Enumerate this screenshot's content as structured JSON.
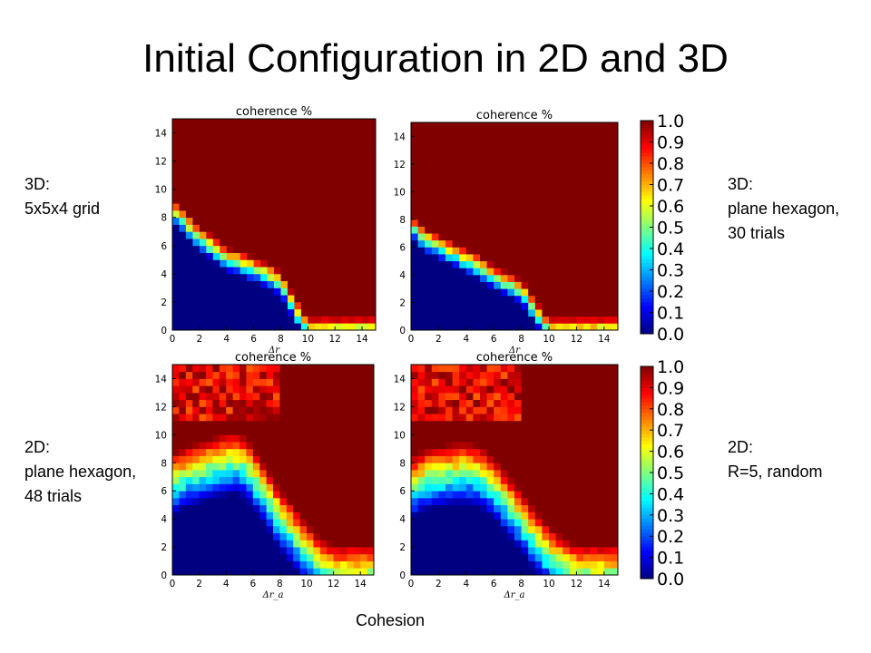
{
  "title": "Initial Configuration in 2D and 3D",
  "labels": {
    "top_left": "3D:\n5x5x4 grid",
    "top_right": "3D:\nplane hexagon,\n30 trials",
    "bottom_left": "2D:\nplane hexagon,\n48 trials",
    "bottom_right": "2D:\nR=5, random"
  },
  "caption": "Cohesion",
  "colorbar": {
    "min": 0.0,
    "max": 1.0,
    "ticks": [
      "0.0",
      "0.1",
      "0.2",
      "0.3",
      "0.4",
      "0.5",
      "0.6",
      "0.7",
      "0.8",
      "0.9",
      "1.0"
    ],
    "colormap": "jet"
  },
  "chart_data": [
    {
      "type": "heatmap",
      "title": "coherence %",
      "xlabel": "Δr",
      "ylabel": "",
      "xlim": [
        0,
        15
      ],
      "ylim": [
        0,
        15
      ],
      "xticks": [
        "0",
        "2",
        "4",
        "6",
        "8",
        "10",
        "12",
        "14"
      ],
      "yticks": [
        "0",
        "2",
        "4",
        "6",
        "8",
        "10",
        "12",
        "14"
      ],
      "boundary": [
        [
          0,
          8.5
        ],
        [
          1,
          7.5
        ],
        [
          2,
          6.5
        ],
        [
          3,
          5.8
        ],
        [
          4,
          5.0
        ],
        [
          5,
          4.7
        ],
        [
          6,
          4.3
        ],
        [
          7,
          3.9
        ],
        [
          8,
          3.3
        ],
        [
          9,
          1.5
        ],
        [
          10,
          0
        ]
      ],
      "width": 0.9
    },
    {
      "type": "heatmap",
      "title": "coherence %",
      "xlabel": "Δr",
      "ylabel": "",
      "xlim": [
        0,
        15
      ],
      "ylim": [
        0,
        15
      ],
      "xticks": [
        "0",
        "2",
        "4",
        "6",
        "8",
        "10",
        "12",
        "14"
      ],
      "yticks": [
        "0",
        "2",
        "4",
        "6",
        "8",
        "10",
        "12",
        "14"
      ],
      "boundary": [
        [
          0,
          7.5
        ],
        [
          1,
          6.5
        ],
        [
          2,
          6.0
        ],
        [
          3,
          5.5
        ],
        [
          4,
          5.0
        ],
        [
          5,
          4.5
        ],
        [
          6,
          3.8
        ],
        [
          7,
          3.3
        ],
        [
          8,
          2.8
        ],
        [
          9,
          1.3
        ],
        [
          10,
          0
        ]
      ],
      "width": 0.9
    },
    {
      "type": "heatmap",
      "title": "coherence %",
      "xlabel": "Δr_a",
      "ylabel": "",
      "xlim": [
        0,
        15
      ],
      "ylim": [
        0,
        15
      ],
      "xticks": [
        "0",
        "2",
        "4",
        "6",
        "8",
        "10",
        "12",
        "14"
      ],
      "yticks": [
        "0",
        "2",
        "4",
        "6",
        "8",
        "10",
        "12",
        "14"
      ],
      "boundary": [
        [
          0,
          6.5
        ],
        [
          1,
          7.0
        ],
        [
          2,
          7.3
        ],
        [
          3,
          7.6
        ],
        [
          4,
          7.9
        ],
        [
          5,
          8.0
        ],
        [
          6,
          7.0
        ],
        [
          7,
          5.5
        ],
        [
          8,
          4.0
        ],
        [
          9,
          2.8
        ],
        [
          10,
          1.5
        ],
        [
          11,
          0.5
        ],
        [
          12,
          0
        ]
      ],
      "width": 2.2,
      "top_noise": 0.1
    },
    {
      "type": "heatmap",
      "title": "coherence %",
      "xlabel": "Δr_a",
      "ylabel": "",
      "xlim": [
        0,
        15
      ],
      "ylim": [
        0,
        15
      ],
      "xticks": [
        "0",
        "2",
        "4",
        "6",
        "8",
        "10",
        "12",
        "14"
      ],
      "yticks": [
        "0",
        "2",
        "4",
        "6",
        "8",
        "10",
        "12",
        "14"
      ],
      "boundary": [
        [
          0,
          6.2
        ],
        [
          1,
          6.8
        ],
        [
          2,
          7.0
        ],
        [
          3,
          7.2
        ],
        [
          4,
          7.3
        ],
        [
          5,
          7.0
        ],
        [
          6,
          6.2
        ],
        [
          7,
          5.0
        ],
        [
          8,
          3.8
        ],
        [
          9,
          2.5
        ],
        [
          10,
          1.3
        ],
        [
          11,
          0.5
        ],
        [
          12,
          0
        ]
      ],
      "width": 2.2,
      "top_noise": 0.1
    }
  ]
}
